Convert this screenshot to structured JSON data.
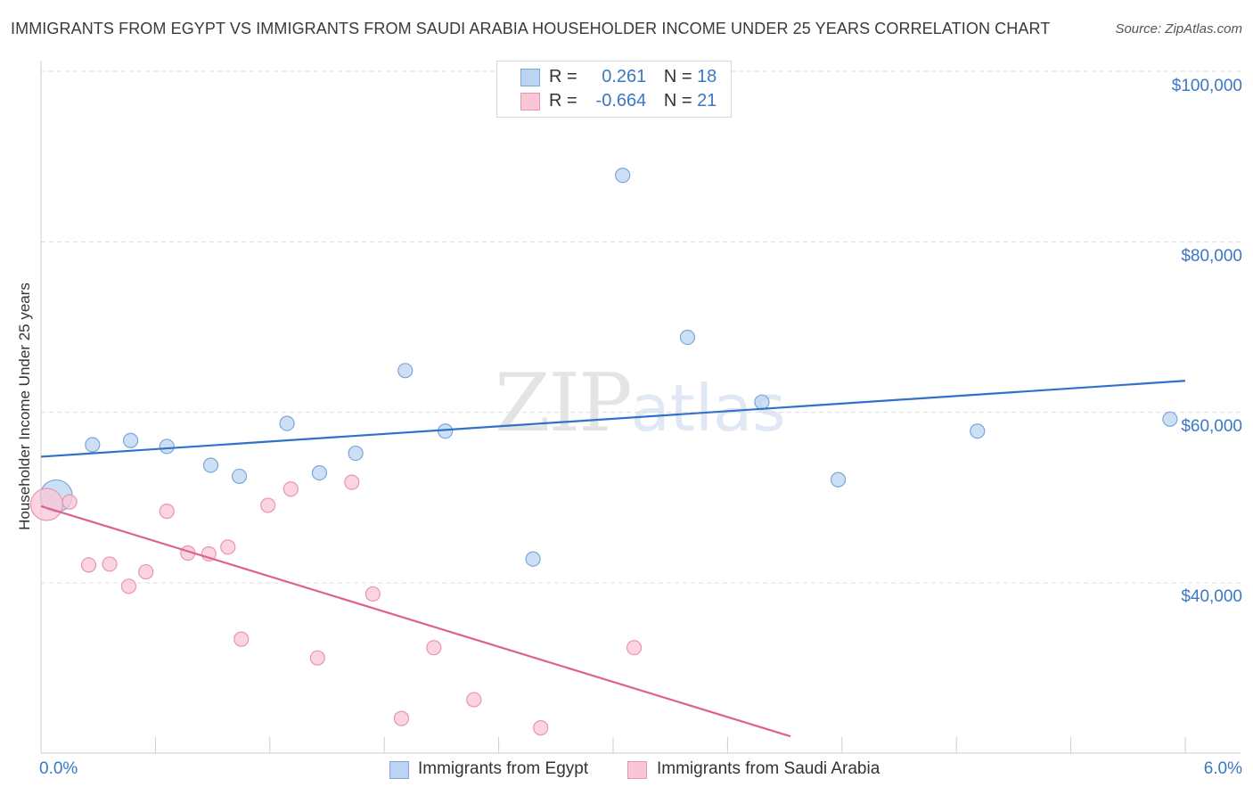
{
  "title": "IMMIGRANTS FROM EGYPT VS IMMIGRANTS FROM SAUDI ARABIA HOUSEHOLDER INCOME UNDER 25 YEARS CORRELATION CHART",
  "source": "Source: ZipAtlas.com",
  "watermark": {
    "zip": "ZIP",
    "atlas": "atlas"
  },
  "legend": {
    "rows": [
      {
        "r_label": "R = ",
        "r_value": "0.261",
        "n_label": "N = ",
        "n_value": "18"
      },
      {
        "r_label": "R = ",
        "r_value": "-0.664",
        "n_label": "N = ",
        "n_value": "21"
      }
    ]
  },
  "bottom_legend": [
    "Immigrants from Egypt",
    "Immigrants from Saudi Arabia"
  ],
  "colors": {
    "egypt_fill": "#bcd4f2",
    "egypt_stroke": "#7aa6da",
    "egypt_line": "#2f72c9",
    "saudi_fill": "#f9c6d5",
    "saudi_stroke": "#e995b0",
    "saudi_line": "#e0608e",
    "tick_text": "#3a78c4",
    "grid": "#dddddd"
  },
  "chart_data": {
    "type": "scatter",
    "title": "IMMIGRANTS FROM EGYPT VS IMMIGRANTS FROM SAUDI ARABIA HOUSEHOLDER INCOME UNDER 25 YEARS CORRELATION CHART",
    "xlabel": "",
    "ylabel": "Householder Income Under 25 years",
    "xlim": [
      0.0,
      6.0
    ],
    "ylim": [
      22000,
      103000
    ],
    "x_tick_labels": [
      "0.0%",
      "6.0%"
    ],
    "y_ticks": [
      40000,
      60000,
      80000,
      100000
    ],
    "y_tick_labels": [
      "$40,000",
      "$60,000",
      "$80,000",
      "$100,000"
    ],
    "grid": true,
    "legend_position": "top-center",
    "series": [
      {
        "name": "Immigrants from Egypt",
        "r": 0.261,
        "n": 18,
        "trend": [
          [
            0.0,
            54800
          ],
          [
            6.0,
            63700
          ]
        ],
        "points": [
          {
            "x": 0.08,
            "y": 50200,
            "big": true
          },
          {
            "x": 0.27,
            "y": 56200
          },
          {
            "x": 0.47,
            "y": 56700
          },
          {
            "x": 0.66,
            "y": 56000
          },
          {
            "x": 0.89,
            "y": 53800
          },
          {
            "x": 1.04,
            "y": 52500
          },
          {
            "x": 1.29,
            "y": 58700
          },
          {
            "x": 1.46,
            "y": 52900
          },
          {
            "x": 1.65,
            "y": 55200
          },
          {
            "x": 1.91,
            "y": 64900
          },
          {
            "x": 2.12,
            "y": 57800
          },
          {
            "x": 2.58,
            "y": 42800
          },
          {
            "x": 3.05,
            "y": 87800
          },
          {
            "x": 3.39,
            "y": 68800
          },
          {
            "x": 3.78,
            "y": 61200
          },
          {
            "x": 4.18,
            "y": 52100
          },
          {
            "x": 4.91,
            "y": 57800
          },
          {
            "x": 5.92,
            "y": 59200
          }
        ]
      },
      {
        "name": "Immigrants from Saudi Arabia",
        "r": -0.664,
        "n": 21,
        "trend": [
          [
            0.0,
            49000
          ],
          [
            3.93,
            22000
          ]
        ],
        "points": [
          {
            "x": 0.03,
            "y": 49200,
            "big": true
          },
          {
            "x": 0.15,
            "y": 49500
          },
          {
            "x": 0.25,
            "y": 42100
          },
          {
            "x": 0.36,
            "y": 42200
          },
          {
            "x": 0.46,
            "y": 39600
          },
          {
            "x": 0.55,
            "y": 41300
          },
          {
            "x": 0.66,
            "y": 48400
          },
          {
            "x": 0.77,
            "y": 43500
          },
          {
            "x": 0.88,
            "y": 43400
          },
          {
            "x": 0.98,
            "y": 44200
          },
          {
            "x": 1.05,
            "y": 33400
          },
          {
            "x": 1.19,
            "y": 49100
          },
          {
            "x": 1.31,
            "y": 51000
          },
          {
            "x": 1.45,
            "y": 31200
          },
          {
            "x": 1.63,
            "y": 51800
          },
          {
            "x": 1.74,
            "y": 38700
          },
          {
            "x": 1.89,
            "y": 24100
          },
          {
            "x": 2.06,
            "y": 32400
          },
          {
            "x": 2.27,
            "y": 26300
          },
          {
            "x": 2.62,
            "y": 23000
          },
          {
            "x": 3.11,
            "y": 32400
          }
        ]
      }
    ]
  }
}
